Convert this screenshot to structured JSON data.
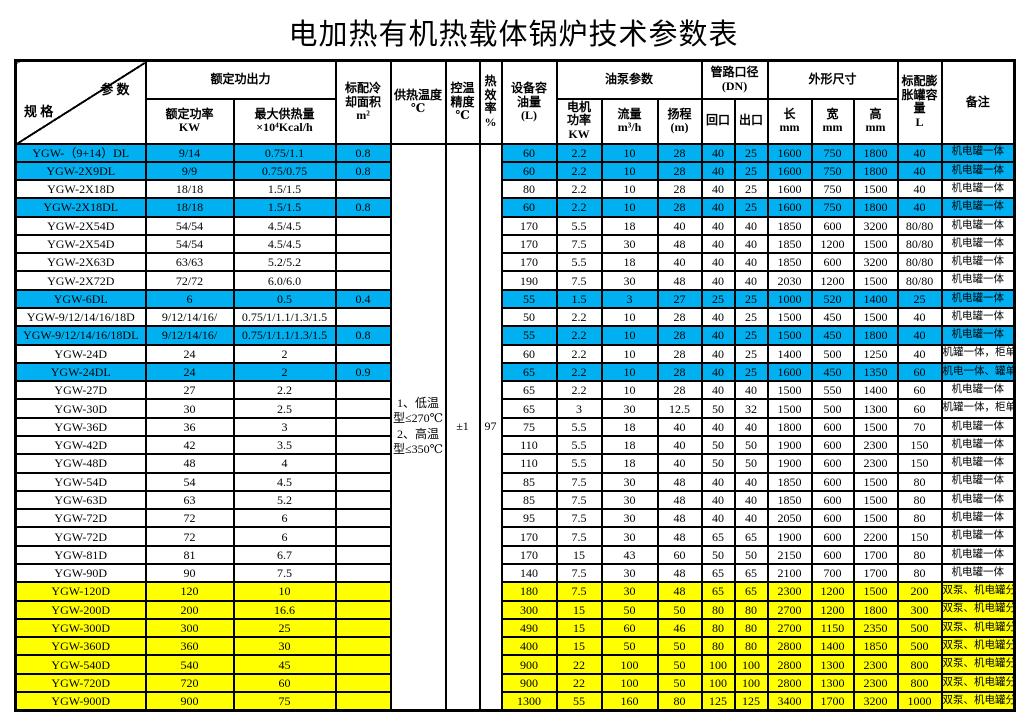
{
  "title": "电加热有机热载体锅炉技术参数表",
  "colors": {
    "row_highlight_blue": "#00B0F0",
    "row_highlight_yellow": "#FFFF00",
    "border": "#000000",
    "background": "#FFFFFF"
  },
  "table": {
    "corner": {
      "param_label": "参 数",
      "spec_label": "规 格"
    },
    "header": {
      "rated_output_group": "额定功出力",
      "rated_power": "额定功率\nKW",
      "max_heat": "最大供热量\n×10⁴Kcal/h",
      "cooling_area": "标配冷\n却面积\nm²",
      "supply_temp": "供热温度\n℃",
      "temp_precision": "控温\n精度\n℃",
      "efficiency": "热\n效\n率\n%",
      "oil_volume": "设备容\n油量\n(L)",
      "pump_group": "油泵参数",
      "motor_power": "电机\n功率\nKW",
      "flow": "流量\nm³/h",
      "lift": "扬程\n(m)",
      "pipe_group": "管路口径\n(DN)",
      "inlet": "回口",
      "outlet": "出口",
      "dimensions_group": "外形尺寸",
      "length": "长\nmm",
      "width": "宽\nmm",
      "height": "高\nmm",
      "tank": "标配膨\n胀罐容\n量\nL",
      "remark": "备注"
    },
    "merged": {
      "supply_temp_note": "1、低温型≤270℃\n2、高温型≤350℃",
      "temp_precision_value": "±1",
      "efficiency_value": "97"
    },
    "rows": [
      {
        "color": "blue",
        "cells": [
          "YGW-（9+14）DL",
          "9/14",
          "0.75/1.1",
          "0.8",
          "60",
          "2.2",
          "10",
          "28",
          "40",
          "25",
          "1600",
          "750",
          "1800",
          "40",
          "机电罐一体"
        ]
      },
      {
        "color": "blue",
        "cells": [
          "YGW-2X9DL",
          "9/9",
          "0.75/0.75",
          "0.8",
          "60",
          "2.2",
          "10",
          "28",
          "40",
          "25",
          "1600",
          "750",
          "1800",
          "40",
          "机电罐一体"
        ]
      },
      {
        "color": "white",
        "cells": [
          "YGW-2X18D",
          "18/18",
          "1.5/1.5",
          "",
          "80",
          "2.2",
          "10",
          "28",
          "40",
          "25",
          "1600",
          "750",
          "1500",
          "40",
          "机电罐一体"
        ]
      },
      {
        "color": "blue",
        "cells": [
          "YGW-2X18DL",
          "18/18",
          "1.5/1.5",
          "0.8",
          "60",
          "2.2",
          "10",
          "28",
          "40",
          "25",
          "1600",
          "750",
          "1800",
          "40",
          "机电罐一体"
        ]
      },
      {
        "color": "white",
        "cells": [
          "YGW-2X54D",
          "54/54",
          "4.5/4.5",
          "",
          "170",
          "5.5",
          "18",
          "40",
          "40",
          "40",
          "1850",
          "600",
          "3200",
          "80/80",
          "机电罐一体"
        ]
      },
      {
        "color": "white",
        "cells": [
          "YGW-2X54D",
          "54/54",
          "4.5/4.5",
          "",
          "170",
          "7.5",
          "30",
          "48",
          "40",
          "40",
          "1850",
          "1200",
          "1500",
          "80/80",
          "机电罐一体"
        ]
      },
      {
        "color": "white",
        "cells": [
          "YGW-2X63D",
          "63/63",
          "5.2/5.2",
          "",
          "170",
          "5.5",
          "18",
          "40",
          "40",
          "40",
          "1850",
          "600",
          "3200",
          "80/80",
          "机电罐一体"
        ]
      },
      {
        "color": "white",
        "cells": [
          "YGW-2X72D",
          "72/72",
          "6.0/6.0",
          "",
          "190",
          "7.5",
          "30",
          "48",
          "40",
          "40",
          "2030",
          "1200",
          "1500",
          "80/80",
          "机电罐一体"
        ]
      },
      {
        "color": "blue",
        "cells": [
          "YGW-6DL",
          "6",
          "0.5",
          "0.4",
          "55",
          "1.5",
          "3",
          "27",
          "25",
          "25",
          "1000",
          "520",
          "1400",
          "25",
          "机电罐一体"
        ]
      },
      {
        "color": "white",
        "cells": [
          "YGW-9/12/14/16/18D",
          "9/12/14/16/",
          "0.75/1/1.1/1.3/1.5",
          "",
          "50",
          "2.2",
          "10",
          "28",
          "40",
          "25",
          "1500",
          "450",
          "1500",
          "40",
          "机电罐一体"
        ]
      },
      {
        "color": "blue",
        "cells": [
          "YGW-9/12/14/16/18DL",
          "9/12/14/16/",
          "0.75/1/1.1/1.3/1.5",
          "0.8",
          "55",
          "2.2",
          "10",
          "28",
          "40",
          "25",
          "1500",
          "450",
          "1800",
          "40",
          "机电罐一体"
        ]
      },
      {
        "color": "white",
        "cells": [
          "YGW-24D",
          "24",
          "2",
          "",
          "60",
          "2.2",
          "10",
          "28",
          "40",
          "25",
          "1400",
          "500",
          "1250",
          "40",
          "机罐一体，柜单"
        ]
      },
      {
        "color": "blue",
        "cells": [
          "YGW-24DL",
          "24",
          "2",
          "0.9",
          "65",
          "2.2",
          "10",
          "28",
          "40",
          "25",
          "1600",
          "450",
          "1350",
          "60",
          "机电一体、罐单"
        ]
      },
      {
        "color": "white",
        "cells": [
          "YGW-27D",
          "27",
          "2.2",
          "",
          "65",
          "2.2",
          "10",
          "28",
          "40",
          "40",
          "1500",
          "550",
          "1400",
          "60",
          "机电罐一体"
        ]
      },
      {
        "color": "white",
        "cells": [
          "YGW-30D",
          "30",
          "2.5",
          "",
          "65",
          "3",
          "30",
          "12.5",
          "50",
          "32",
          "1500",
          "500",
          "1300",
          "60",
          "机罐一体，柜单"
        ]
      },
      {
        "color": "white",
        "cells": [
          "YGW-36D",
          "36",
          "3",
          "",
          "75",
          "5.5",
          "18",
          "40",
          "40",
          "40",
          "1800",
          "600",
          "1500",
          "70",
          "机电罐一体"
        ]
      },
      {
        "color": "white",
        "cells": [
          "YGW-42D",
          "42",
          "3.5",
          "",
          "110",
          "5.5",
          "18",
          "40",
          "50",
          "50",
          "1900",
          "600",
          "2300",
          "150",
          "机电罐一体"
        ]
      },
      {
        "color": "white",
        "cells": [
          "YGW-48D",
          "48",
          "4",
          "",
          "110",
          "5.5",
          "18",
          "40",
          "50",
          "50",
          "1900",
          "600",
          "2300",
          "150",
          "机电罐一体"
        ]
      },
      {
        "color": "white",
        "cells": [
          "YGW-54D",
          "54",
          "4.5",
          "",
          "85",
          "7.5",
          "30",
          "48",
          "40",
          "40",
          "1850",
          "600",
          "1500",
          "80",
          "机电罐一体"
        ]
      },
      {
        "color": "white",
        "cells": [
          "YGW-63D",
          "63",
          "5.2",
          "",
          "85",
          "7.5",
          "30",
          "48",
          "40",
          "40",
          "1850",
          "600",
          "1500",
          "80",
          "机电罐一体"
        ]
      },
      {
        "color": "white",
        "cells": [
          "YGW-72D",
          "72",
          "6",
          "",
          "95",
          "7.5",
          "30",
          "48",
          "40",
          "40",
          "2050",
          "600",
          "1500",
          "80",
          "机电罐一体"
        ]
      },
      {
        "color": "white",
        "cells": [
          "YGW-72D",
          "72",
          "6",
          "",
          "170",
          "7.5",
          "30",
          "48",
          "65",
          "65",
          "1900",
          "600",
          "2200",
          "150",
          "机电罐一体"
        ]
      },
      {
        "color": "white",
        "cells": [
          "YGW-81D",
          "81",
          "6.7",
          "",
          "170",
          "15",
          "43",
          "60",
          "50",
          "50",
          "2150",
          "600",
          "1700",
          "80",
          "机电罐一体"
        ]
      },
      {
        "color": "white",
        "cells": [
          "YGW-90D",
          "90",
          "7.5",
          "",
          "140",
          "7.5",
          "30",
          "48",
          "65",
          "65",
          "2100",
          "700",
          "1700",
          "80",
          "机电罐一体"
        ]
      },
      {
        "color": "yellow",
        "cells": [
          "YGW-120D",
          "120",
          "10",
          "",
          "180",
          "7.5",
          "30",
          "48",
          "65",
          "65",
          "2300",
          "1200",
          "1500",
          "200",
          "双泵、机电罐分"
        ]
      },
      {
        "color": "yellow",
        "cells": [
          "YGW-200D",
          "200",
          "16.6",
          "",
          "300",
          "15",
          "50",
          "50",
          "80",
          "80",
          "2700",
          "1200",
          "1800",
          "300",
          "双泵、机电罐分"
        ]
      },
      {
        "color": "yellow",
        "cells": [
          "YGW-300D",
          "300",
          "25",
          "",
          "490",
          "15",
          "60",
          "46",
          "80",
          "80",
          "2700",
          "1150",
          "2350",
          "500",
          "双泵、机电罐分"
        ]
      },
      {
        "color": "yellow",
        "cells": [
          "YGW-360D",
          "360",
          "30",
          "",
          "400",
          "15",
          "50",
          "50",
          "80",
          "80",
          "2800",
          "1400",
          "1850",
          "500",
          "双泵、机电罐分"
        ]
      },
      {
        "color": "yellow",
        "cells": [
          "YGW-540D",
          "540",
          "45",
          "",
          "900",
          "22",
          "100",
          "50",
          "100",
          "100",
          "2800",
          "1300",
          "2300",
          "800",
          "双泵、机电罐分"
        ]
      },
      {
        "color": "yellow",
        "cells": [
          "YGW-720D",
          "720",
          "60",
          "",
          "900",
          "22",
          "100",
          "50",
          "100",
          "100",
          "2800",
          "1300",
          "2300",
          "800",
          "双泵、机电罐分"
        ]
      },
      {
        "color": "yellow",
        "cells": [
          "YGW-900D",
          "900",
          "75",
          "",
          "1300",
          "55",
          "160",
          "80",
          "125",
          "125",
          "3400",
          "1700",
          "3200",
          "1000",
          "双泵、机电罐分"
        ]
      }
    ]
  }
}
